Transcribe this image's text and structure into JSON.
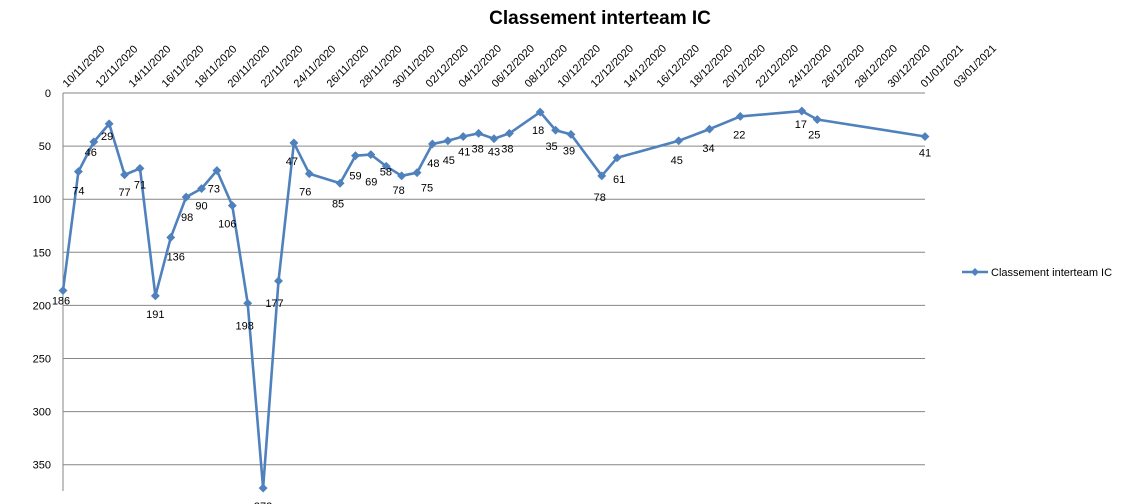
{
  "chart_data": {
    "type": "line",
    "title": "Classement interteam IC",
    "xlabel": "",
    "ylabel": "",
    "y_reversed": true,
    "ylim": [
      0,
      372
    ],
    "y_ticks": [
      0,
      50,
      100,
      150,
      200,
      250,
      300,
      350
    ],
    "x_tick_labels": [
      "10/11/2020",
      "12/11/2020",
      "14/11/2020",
      "16/11/2020",
      "18/11/2020",
      "20/11/2020",
      "22/11/2020",
      "24/11/2020",
      "26/11/2020",
      "28/11/2020",
      "30/11/2020",
      "02/12/2020",
      "04/12/2020",
      "06/12/2020",
      "08/12/2020",
      "10/12/2020",
      "12/12/2020",
      "14/12/2020",
      "16/12/2020",
      "18/12/2020",
      "20/12/2020",
      "22/12/2020",
      "24/12/2020",
      "26/12/2020",
      "28/12/2020",
      "30/12/2020",
      "01/01/2021",
      "03/01/2021"
    ],
    "grid": true,
    "legend_position": "right",
    "series": [
      {
        "name": "Classement interteam IC",
        "color": "#4F81BD",
        "marker": "diamond",
        "points": [
          {
            "x": "2020-11-09",
            "y": 186
          },
          {
            "x": "2020-11-10",
            "y": 74
          },
          {
            "x": "2020-11-11",
            "y": 46
          },
          {
            "x": "2020-11-12",
            "y": 29
          },
          {
            "x": "2020-11-13",
            "y": 77
          },
          {
            "x": "2020-11-14",
            "y": 71
          },
          {
            "x": "2020-11-15",
            "y": 191
          },
          {
            "x": "2020-11-16",
            "y": 136
          },
          {
            "x": "2020-11-17",
            "y": 98
          },
          {
            "x": "2020-11-18",
            "y": 90
          },
          {
            "x": "2020-11-19",
            "y": 73
          },
          {
            "x": "2020-11-20",
            "y": 106
          },
          {
            "x": "2020-11-21",
            "y": 198
          },
          {
            "x": "2020-11-22",
            "y": 372
          },
          {
            "x": "2020-11-23",
            "y": 177
          },
          {
            "x": "2020-11-24",
            "y": 47
          },
          {
            "x": "2020-11-25",
            "y": 76
          },
          {
            "x": "2020-11-27",
            "y": 85
          },
          {
            "x": "2020-11-28",
            "y": 59
          },
          {
            "x": "2020-11-29",
            "y": 58
          },
          {
            "x": "2020-11-30",
            "y": 69
          },
          {
            "x": "2020-12-01",
            "y": 78
          },
          {
            "x": "2020-12-02",
            "y": 75
          },
          {
            "x": "2020-12-03",
            "y": 48
          },
          {
            "x": "2020-12-04",
            "y": 45
          },
          {
            "x": "2020-12-05",
            "y": 41
          },
          {
            "x": "2020-12-06",
            "y": 38
          },
          {
            "x": "2020-12-07",
            "y": 43
          },
          {
            "x": "2020-12-08",
            "y": 38
          },
          {
            "x": "2020-12-10",
            "y": 18
          },
          {
            "x": "2020-12-11",
            "y": 35
          },
          {
            "x": "2020-12-12",
            "y": 39
          },
          {
            "x": "2020-12-14",
            "y": 78
          },
          {
            "x": "2020-12-15",
            "y": 61
          },
          {
            "x": "2020-12-19",
            "y": 45
          },
          {
            "x": "2020-12-21",
            "y": 34
          },
          {
            "x": "2020-12-23",
            "y": 22
          },
          {
            "x": "2020-12-27",
            "y": 17
          },
          {
            "x": "2020-12-28",
            "y": 25
          },
          {
            "x": "2021-01-04",
            "y": 41
          }
        ]
      }
    ]
  }
}
